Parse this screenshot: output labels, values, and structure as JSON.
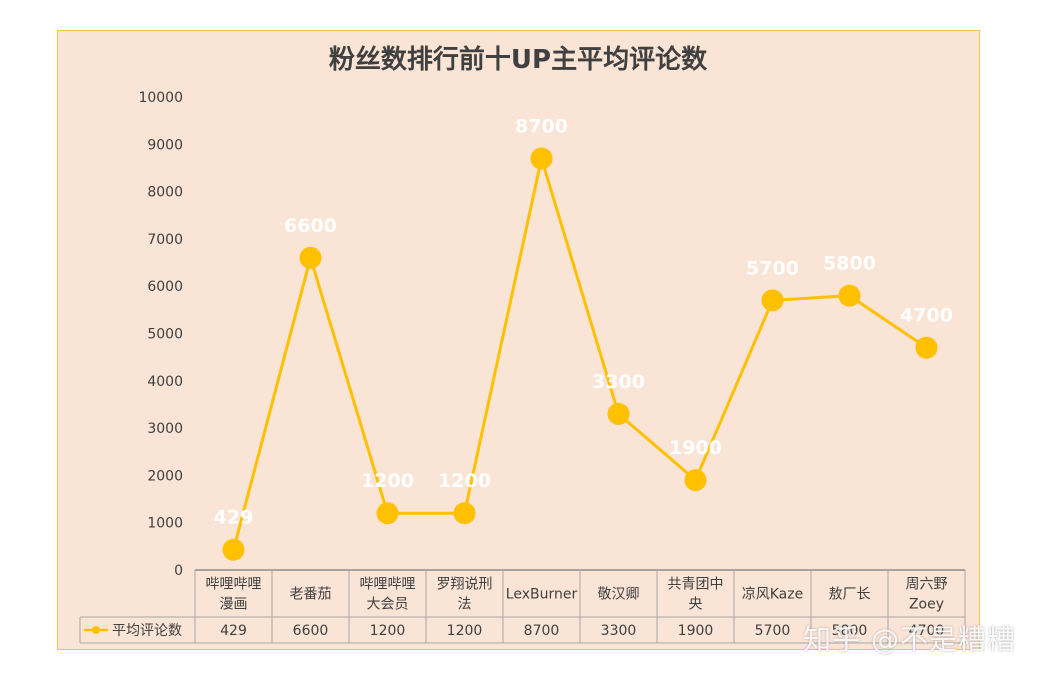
{
  "chart_data": {
    "type": "line",
    "title": "粉丝数排行前十UP主平均评论数",
    "categories": [
      [
        "哔哩哔哩",
        "漫画"
      ],
      [
        "老番茄"
      ],
      [
        "哔哩哔哩",
        "大会员"
      ],
      [
        "罗翔说刑",
        "法"
      ],
      [
        "LexBurner"
      ],
      [
        "敬汉卿"
      ],
      [
        "共青团中",
        "央"
      ],
      [
        "凉风Kaze"
      ],
      [
        "敖厂长"
      ],
      [
        "周六野",
        "Zoey"
      ]
    ],
    "series": [
      {
        "name": "平均评论数",
        "values": [
          429,
          6600,
          1200,
          1200,
          8700,
          3300,
          1900,
          5700,
          5800,
          4700
        ],
        "color": "#ffc000"
      }
    ],
    "data_labels": [
      "429",
      "6600",
      "1200",
      "1200",
      "8700",
      "3300",
      "1900",
      "5700",
      "5800",
      "4700"
    ],
    "ylim": [
      0,
      10000
    ],
    "yticks": [
      0,
      1000,
      2000,
      3000,
      4000,
      5000,
      6000,
      7000,
      8000,
      9000,
      10000
    ],
    "grid": false,
    "legend": "data-table",
    "data_table": true
  },
  "watermark": "知乎 @不是糟糟"
}
